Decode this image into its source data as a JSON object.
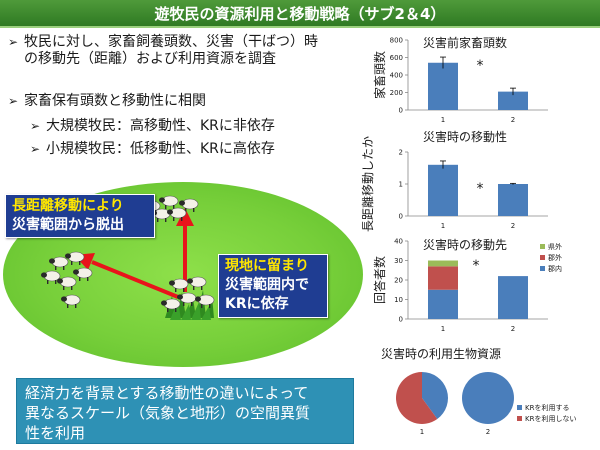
{
  "title": "遊牧民の資源利用と移動戦略（サブ2＆4）",
  "bullets": {
    "marker": "➢",
    "b1_line1": "牧民に対し、家畜飼養頭数、災害（干ばつ）時",
    "b1_line2": "の移動先（距離）および利用資源を調査",
    "b2": "家畜保有頭数と移動性に相関",
    "b3": "大規模牧民：高移動性、KRに非依存",
    "b4": "小規模牧民：低移動性、KRに高依存"
  },
  "callout_left": {
    "line1": "長距離移動により",
    "line2": "災害範囲から脱出"
  },
  "callout_right": {
    "line1": "現地に留まり",
    "line2": "災害範囲内で",
    "line3": "KRに依存"
  },
  "note": {
    "line1": "経済力を背景とする移動性の違いによって",
    "line2": "異なるスケール（気象と地形）の空間異質",
    "line3": "性を利用"
  },
  "colors": {
    "title_bg": "#3f8a2e",
    "field_green": "#77cf3a",
    "callout_bg": "#1f3d92",
    "callout_accent": "#ffe600",
    "arrow": "#e8141b",
    "note_bg": "#2e91b5",
    "bar_blue": "#4a7ebb",
    "bar_red": "#c0504d",
    "bar_green": "#9bbb59"
  },
  "chart_data": [
    {
      "type": "bar",
      "title": "災害前家畜頭数",
      "ylabel": "家畜頭数",
      "categories": [
        "1",
        "2"
      ],
      "values": [
        540,
        210
      ],
      "errors": [
        65,
        40
      ],
      "ylim": [
        0,
        800
      ],
      "yticks": [
        "0",
        "200",
        "400",
        "600",
        "800"
      ],
      "annotation": "*"
    },
    {
      "type": "bar",
      "title": "災害時の移動性",
      "ylabel": "長距離移動したか",
      "categories": [
        "1",
        "2"
      ],
      "values": [
        1.6,
        1.0
      ],
      "errors": [
        0.12,
        0.02
      ],
      "ylim": [
        0,
        2
      ],
      "yticks": [
        "0",
        "1",
        "2"
      ],
      "annotation": "*"
    },
    {
      "type": "bar",
      "title": "災害時の移動先",
      "ylabel": "回答者数",
      "categories": [
        "1",
        "2"
      ],
      "series": [
        {
          "name": "郡内",
          "values": [
            15,
            22
          ]
        },
        {
          "name": "郡外",
          "values": [
            12,
            0
          ]
        },
        {
          "name": "県外",
          "values": [
            3,
            0
          ]
        }
      ],
      "ylim": [
        0,
        40
      ],
      "yticks": [
        "0",
        "10",
        "20",
        "30",
        "40"
      ],
      "annotation": "*"
    },
    {
      "type": "pie",
      "title": "災害時の利用生物資源",
      "categories": [
        "1",
        "2"
      ],
      "series": [
        {
          "name": "KRを利用する",
          "values": [
            40,
            100
          ]
        },
        {
          "name": "KRを利用しない",
          "values": [
            60,
            0
          ]
        }
      ]
    }
  ]
}
